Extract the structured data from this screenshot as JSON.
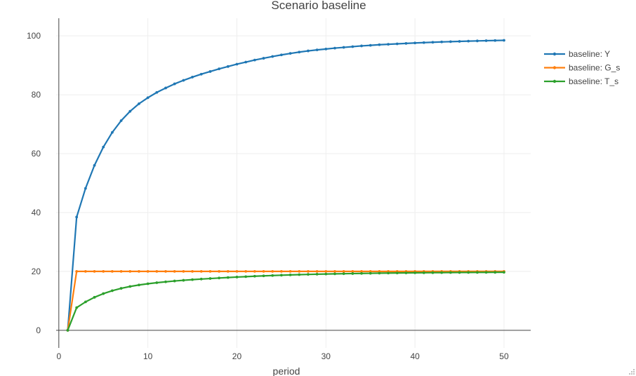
{
  "chart_data": {
    "type": "line",
    "title": "Scenario baseline",
    "xlabel": "period",
    "ylabel": "",
    "xlim": [
      -0.3,
      53
    ],
    "ylim": [
      -6,
      106
    ],
    "xticks": [
      0,
      10,
      20,
      30,
      40,
      50
    ],
    "yticks": [
      0,
      20,
      40,
      60,
      80,
      100
    ],
    "grid": true,
    "legend_position": "top-right",
    "x": [
      1,
      2,
      3,
      4,
      5,
      6,
      7,
      8,
      9,
      10,
      11,
      12,
      13,
      14,
      15,
      16,
      17,
      18,
      19,
      20,
      21,
      22,
      23,
      24,
      25,
      26,
      27,
      28,
      29,
      30,
      31,
      32,
      33,
      34,
      35,
      36,
      37,
      38,
      39,
      40,
      41,
      42,
      43,
      44,
      45,
      46,
      47,
      48,
      49,
      50
    ],
    "series": [
      {
        "name": "baseline: Y",
        "color": "#1f77b4",
        "values": [
          0,
          38.46,
          48.22,
          56.02,
          62.24,
          67.22,
          71.2,
          74.38,
          76.96,
          79.0,
          80.8,
          82.3,
          83.7,
          84.9,
          86.0,
          87.0,
          87.9,
          88.8,
          89.6,
          90.4,
          91.1,
          91.8,
          92.4,
          93.0,
          93.55,
          94.05,
          94.5,
          94.9,
          95.25,
          95.55,
          95.85,
          96.1,
          96.35,
          96.6,
          96.8,
          97.0,
          97.15,
          97.3,
          97.45,
          97.6,
          97.72,
          97.84,
          97.95,
          98.05,
          98.14,
          98.22,
          98.3,
          98.37,
          98.44,
          98.5
        ]
      },
      {
        "name": "baseline: G_s",
        "color": "#ff7f0e",
        "values": [
          0,
          20,
          20,
          20,
          20,
          20,
          20,
          20,
          20,
          20,
          20,
          20,
          20,
          20,
          20,
          20,
          20,
          20,
          20,
          20,
          20,
          20,
          20,
          20,
          20,
          20,
          20,
          20,
          20,
          20,
          20,
          20,
          20,
          20,
          20,
          20,
          20,
          20,
          20,
          20,
          20,
          20,
          20,
          20,
          20,
          20,
          20,
          20,
          20,
          20
        ]
      },
      {
        "name": "baseline: T_s",
        "color": "#2ca02c",
        "values": [
          0,
          7.69,
          9.64,
          11.2,
          12.45,
          13.44,
          14.24,
          14.88,
          15.39,
          15.8,
          16.16,
          16.46,
          16.74,
          16.98,
          17.2,
          17.4,
          17.58,
          17.76,
          17.92,
          18.08,
          18.22,
          18.36,
          18.48,
          18.6,
          18.71,
          18.81,
          18.9,
          18.98,
          19.05,
          19.11,
          19.17,
          19.22,
          19.27,
          19.32,
          19.36,
          19.4,
          19.43,
          19.46,
          19.49,
          19.52,
          19.54,
          19.57,
          19.59,
          19.61,
          19.63,
          19.64,
          19.66,
          19.67,
          19.69,
          19.7
        ]
      }
    ]
  }
}
